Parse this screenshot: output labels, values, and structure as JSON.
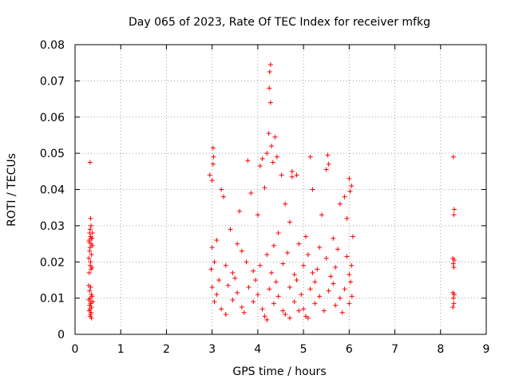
{
  "chart_data": {
    "type": "scatter",
    "title": "Day 065 of 2023, Rate Of TEC Index for receiver mfkg",
    "xlabel": "GPS time / hours",
    "ylabel": "ROTI / TECUs",
    "xlim": [
      0,
      9
    ],
    "ylim": [
      0,
      0.08
    ],
    "x_ticks": [
      "0",
      "1",
      "2",
      "3",
      "4",
      "5",
      "6",
      "7",
      "8",
      "9"
    ],
    "y_ticks": [
      "0",
      "0.01",
      "0.02",
      "0.03",
      "0.04",
      "0.05",
      "0.06",
      "0.07",
      "0.08"
    ],
    "x_tick_values": [
      0,
      1,
      2,
      3,
      4,
      5,
      6,
      7,
      8,
      9
    ],
    "y_tick_values": [
      0,
      0.01,
      0.02,
      0.03,
      0.04,
      0.05,
      0.06,
      0.07,
      0.08
    ],
    "grid": true,
    "marker": "+",
    "color": "#ff0000",
    "series": [
      {
        "name": "ROTI",
        "points": [
          [
            0.33,
            0.0475
          ],
          [
            0.34,
            0.032
          ],
          [
            0.35,
            0.03
          ],
          [
            0.33,
            0.029
          ],
          [
            0.32,
            0.028
          ],
          [
            0.34,
            0.027
          ],
          [
            0.31,
            0.026
          ],
          [
            0.35,
            0.025
          ],
          [
            0.33,
            0.024
          ],
          [
            0.32,
            0.023
          ],
          [
            0.36,
            0.022
          ],
          [
            0.3,
            0.021
          ],
          [
            0.34,
            0.02
          ],
          [
            0.33,
            0.019
          ],
          [
            0.35,
            0.018
          ],
          [
            0.31,
            0.017
          ],
          [
            0.34,
            0.013
          ],
          [
            0.32,
            0.012
          ],
          [
            0.36,
            0.011
          ],
          [
            0.33,
            0.01
          ],
          [
            0.3,
            0.0095
          ],
          [
            0.35,
            0.009
          ],
          [
            0.34,
            0.0085
          ],
          [
            0.32,
            0.008
          ],
          [
            0.36,
            0.0075
          ],
          [
            0.33,
            0.007
          ],
          [
            0.31,
            0.0065
          ],
          [
            0.35,
            0.006
          ],
          [
            0.34,
            0.0055
          ],
          [
            0.33,
            0.005
          ],
          [
            0.36,
            0.0045
          ],
          [
            0.37,
            0.0105
          ],
          [
            0.38,
            0.0245
          ],
          [
            0.37,
            0.0265
          ],
          [
            0.38,
            0.028
          ],
          [
            0.37,
            0.0185
          ],
          [
            0.3,
            0.0135
          ],
          [
            0.31,
            0.0255
          ],
          [
            0.36,
            0.0265
          ],
          [
            0.39,
            0.009
          ],
          [
            4.28,
            0.0745
          ],
          [
            4.26,
            0.0725
          ],
          [
            4.25,
            0.068
          ],
          [
            4.28,
            0.064
          ],
          [
            4.24,
            0.0555
          ],
          [
            4.38,
            0.0545
          ],
          [
            4.3,
            0.052
          ],
          [
            4.2,
            0.05
          ],
          [
            4.1,
            0.0485
          ],
          [
            4.42,
            0.049
          ],
          [
            4.33,
            0.0475
          ],
          [
            4.05,
            0.0465
          ],
          [
            3.78,
            0.048
          ],
          [
            5.15,
            0.049
          ],
          [
            5.53,
            0.0495
          ],
          [
            5.55,
            0.047
          ],
          [
            5.5,
            0.0455
          ],
          [
            4.75,
            0.045
          ],
          [
            4.75,
            0.0435
          ],
          [
            3.02,
            0.0515
          ],
          [
            3.03,
            0.049
          ],
          [
            3.02,
            0.047
          ],
          [
            2.95,
            0.044
          ],
          [
            3.0,
            0.0425
          ],
          [
            4.52,
            0.044
          ],
          [
            4.85,
            0.044
          ],
          [
            5.2,
            0.04
          ],
          [
            6.0,
            0.043
          ],
          [
            6.05,
            0.041
          ],
          [
            6.02,
            0.0395
          ],
          [
            5.9,
            0.038
          ],
          [
            3.2,
            0.04
          ],
          [
            3.25,
            0.038
          ],
          [
            3.85,
            0.039
          ],
          [
            4.15,
            0.0405
          ],
          [
            4.6,
            0.036
          ],
          [
            5.8,
            0.036
          ],
          [
            3.6,
            0.034
          ],
          [
            4.0,
            0.033
          ],
          [
            4.7,
            0.031
          ],
          [
            5.4,
            0.033
          ],
          [
            5.95,
            0.032
          ],
          [
            3.4,
            0.029
          ],
          [
            4.45,
            0.028
          ],
          [
            5.05,
            0.027
          ],
          [
            5.65,
            0.0265
          ],
          [
            6.08,
            0.027
          ],
          [
            3.1,
            0.026
          ],
          [
            3.55,
            0.025
          ],
          [
            4.35,
            0.0245
          ],
          [
            4.9,
            0.025
          ],
          [
            5.35,
            0.024
          ],
          [
            5.75,
            0.0235
          ],
          [
            3.0,
            0.024
          ],
          [
            3.65,
            0.023
          ],
          [
            4.2,
            0.022
          ],
          [
            4.65,
            0.0225
          ],
          [
            5.1,
            0.022
          ],
          [
            5.5,
            0.021
          ],
          [
            5.95,
            0.0215
          ],
          [
            3.05,
            0.02
          ],
          [
            3.3,
            0.019
          ],
          [
            3.75,
            0.02
          ],
          [
            4.05,
            0.019
          ],
          [
            4.55,
            0.0195
          ],
          [
            5.0,
            0.019
          ],
          [
            5.3,
            0.018
          ],
          [
            5.7,
            0.0185
          ],
          [
            6.05,
            0.019
          ],
          [
            2.98,
            0.018
          ],
          [
            3.45,
            0.017
          ],
          [
            3.9,
            0.0175
          ],
          [
            4.3,
            0.017
          ],
          [
            4.8,
            0.0165
          ],
          [
            5.2,
            0.017
          ],
          [
            5.6,
            0.016
          ],
          [
            6.0,
            0.0165
          ],
          [
            3.15,
            0.015
          ],
          [
            3.5,
            0.0155
          ],
          [
            3.95,
            0.015
          ],
          [
            4.4,
            0.0145
          ],
          [
            4.85,
            0.015
          ],
          [
            5.25,
            0.0145
          ],
          [
            5.65,
            0.014
          ],
          [
            6.03,
            0.0145
          ],
          [
            3.0,
            0.013
          ],
          [
            3.35,
            0.0135
          ],
          [
            3.8,
            0.013
          ],
          [
            4.25,
            0.0125
          ],
          [
            4.7,
            0.013
          ],
          [
            5.15,
            0.0125
          ],
          [
            5.55,
            0.012
          ],
          [
            5.9,
            0.0125
          ],
          [
            3.1,
            0.011
          ],
          [
            3.55,
            0.0115
          ],
          [
            4.0,
            0.011
          ],
          [
            4.45,
            0.0105
          ],
          [
            4.95,
            0.011
          ],
          [
            5.35,
            0.0105
          ],
          [
            5.8,
            0.01
          ],
          [
            6.06,
            0.0105
          ],
          [
            3.05,
            0.009
          ],
          [
            3.45,
            0.0095
          ],
          [
            3.9,
            0.009
          ],
          [
            4.35,
            0.0085
          ],
          [
            4.8,
            0.009
          ],
          [
            5.25,
            0.0085
          ],
          [
            5.7,
            0.008
          ],
          [
            6.0,
            0.0085
          ],
          [
            3.2,
            0.007
          ],
          [
            3.65,
            0.0075
          ],
          [
            4.1,
            0.007
          ],
          [
            4.55,
            0.0065
          ],
          [
            5.0,
            0.007
          ],
          [
            5.45,
            0.0065
          ],
          [
            5.85,
            0.006
          ],
          [
            3.3,
            0.0055
          ],
          [
            4.15,
            0.005
          ],
          [
            4.6,
            0.0055
          ],
          [
            5.05,
            0.005
          ],
          [
            4.7,
            0.0045
          ],
          [
            4.2,
            0.004
          ],
          [
            5.1,
            0.0045
          ],
          [
            3.7,
            0.006
          ],
          [
            4.9,
            0.0065
          ],
          [
            8.28,
            0.049
          ],
          [
            8.3,
            0.0345
          ],
          [
            8.29,
            0.033
          ],
          [
            8.27,
            0.021
          ],
          [
            8.3,
            0.0205
          ],
          [
            8.28,
            0.0195
          ],
          [
            8.29,
            0.0185
          ],
          [
            8.27,
            0.0115
          ],
          [
            8.3,
            0.011
          ],
          [
            8.28,
            0.01
          ],
          [
            8.29,
            0.0085
          ],
          [
            8.27,
            0.0075
          ]
        ]
      }
    ]
  }
}
